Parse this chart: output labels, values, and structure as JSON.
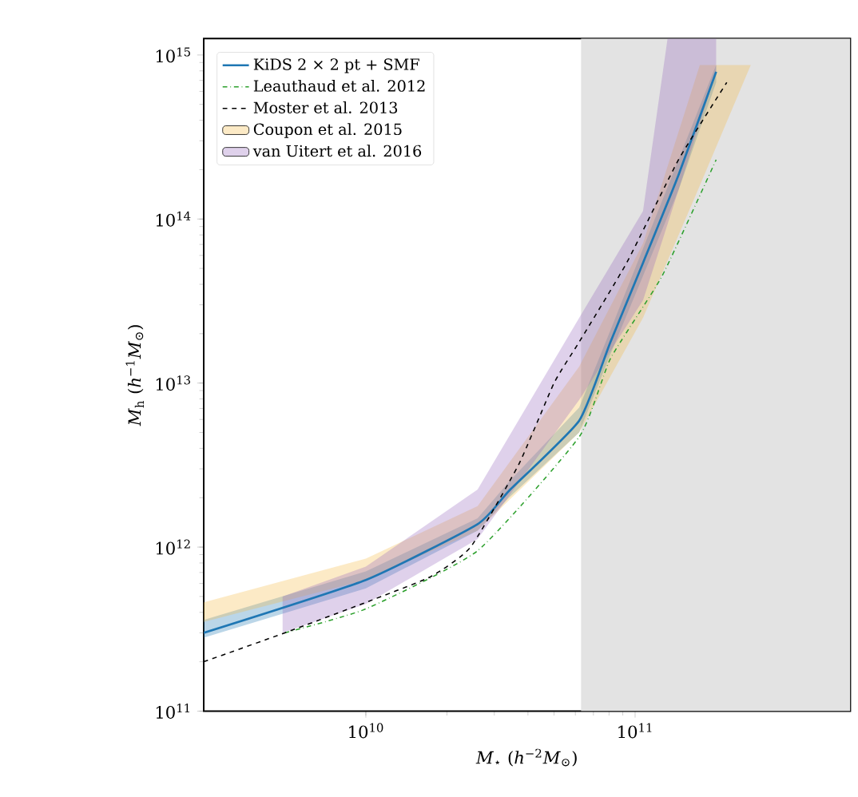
{
  "chart_data": {
    "type": "line",
    "xlabel": "*M*$_{⋆}$ (*h*$^{−2}$*M*$_{⊙}$)",
    "ylabel": "*M*$_{h}$ (*h*$^{−1}$*M*$_{⊙}$)",
    "log": "xy",
    "xlim": [
      2500000000.0,
      630000000000.0
    ],
    "ylim": [
      100000000000.0,
      1260000000000000.0
    ],
    "xticks": [
      {
        "value": 10000000000.0,
        "label": "10$^{10}$"
      },
      {
        "value": 100000000000.0,
        "label": "10$^{11}$"
      }
    ],
    "yticks": [
      {
        "value": 100000000000.0,
        "label": "10$^{11}$"
      },
      {
        "value": 1000000000000.0,
        "label": "10$^{12}$"
      },
      {
        "value": 10000000000000.0,
        "label": "10$^{13}$"
      },
      {
        "value": 100000000000000.0,
        "label": "10$^{14}$"
      },
      {
        "value": 1000000000000000.0,
        "label": "10$^{15}$"
      }
    ],
    "legend": "top left",
    "bands": [
      {
        "axis": "x",
        "from": 63000000000.0,
        "to": 630000000000.0,
        "color": "#e3e3e3"
      }
    ],
    "series": [
      {
        "name": "KiDS 2 × 2 pt + SMF",
        "color": "#1f77b4",
        "line_style": "solid",
        "x": [
          2500000000.0,
          10000000000.0,
          26000000000.0,
          34000000000.0,
          62000000000.0,
          81000000000.0,
          107000000000.0,
          145000000000.0,
          200000000000.0
        ],
        "values": [
          300000000000.0,
          630000000000.0,
          1380000000000.0,
          2200000000000.0,
          5900000000000.0,
          17800000000000.0,
          54000000000000.0,
          186000000000000.0,
          790000000000000.0
        ],
        "lower": [
          280000000000.0,
          560000000000.0,
          1260000000000.0,
          2000000000000.0,
          5000000000000.0,
          15000000000000.0,
          45000000000000.0,
          150000000000000.0,
          680000000000000.0
        ],
        "upper": [
          360000000000.0,
          710000000000.0,
          1500000000000.0,
          2500000000000.0,
          7100000000000.0,
          21000000000000.0,
          66000000000000.0,
          230000000000000.0,
          870000000000000.0
        ]
      },
      {
        "name": "Leauthaud et al. 2012",
        "color": "#2ca02c",
        "line_style": "dashdot",
        "x": [
          5000000000.0,
          10000000000.0,
          26000000000.0,
          62000000000.0,
          81000000000.0,
          126000000000.0,
          200000000000.0
        ],
        "values": [
          300000000000.0,
          420000000000.0,
          950000000000.0,
          4700000000000.0,
          14100000000000.0,
          45000000000000.0,
          230000000000000.0
        ]
      },
      {
        "name": "Moster et al. 2013",
        "color": "#000000",
        "line_style": "dashed",
        "x": [
          2500000000.0,
          5000000000.0,
          10000000000.0,
          17400000000.0,
          24500000000.0,
          37000000000.0,
          50000000000.0,
          62000000000.0,
          93000000000.0,
          145000000000.0,
          219000000000.0
        ],
        "values": [
          200000000000.0,
          300000000000.0,
          460000000000.0,
          660000000000.0,
          1000000000000.0,
          3200000000000.0,
          10000000000000.0,
          17800000000000.0,
          54000000000000.0,
          230000000000000.0,
          680000000000000.0
        ]
      },
      {
        "name": "Coupon et al. 2015",
        "color": "#f5b942",
        "x": [
          2500000000.0,
          10000000000.0,
          26000000000.0,
          62000000000.0,
          107000000000.0,
          174000000000.0,
          269000000000.0
        ],
        "values": [
          null,
          null,
          null,
          null,
          null,
          null,
          null
        ],
        "lower": [
          350000000000.0,
          630000000000.0,
          1260000000000.0,
          5000000000000.0,
          25000000000000.0,
          160000000000000.0,
          870000000000000.0
        ],
        "upper": [
          460000000000.0,
          850000000000.0,
          1780000000000.0,
          12600000000000.0,
          71000000000000.0,
          870000000000000.0,
          870000000000000.0
        ]
      },
      {
        "name": "van Uitert et al. 2016",
        "color": "#9467bd",
        "x": [
          4900000000.0,
          10000000000.0,
          26000000000.0,
          62000000000.0,
          107000000000.0,
          132000000000.0,
          200000000000.0
        ],
        "values": [
          null,
          null,
          null,
          null,
          null,
          null,
          null
        ],
        "lower": [
          300000000000.0,
          450000000000.0,
          1120000000000.0,
          7900000000000.0,
          32000000000000.0,
          93000000000000.0,
          790000000000000.0
        ],
        "upper": [
          500000000000.0,
          760000000000.0,
          2240000000000.0,
          25000000000000.0,
          112000000000000.0,
          1260000000000000.0,
          1260000000000000.0
        ]
      }
    ]
  }
}
